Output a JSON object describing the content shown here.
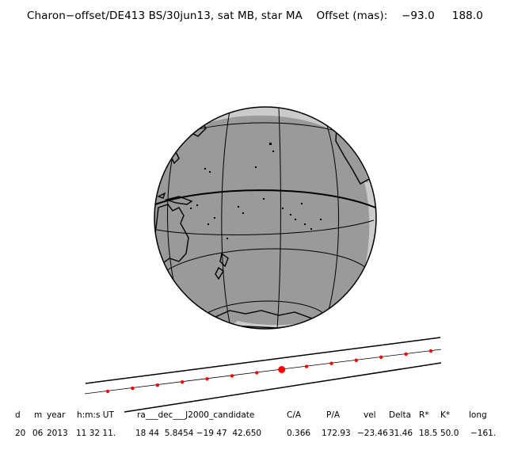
{
  "title": "Charon−offset/DE413 BS/30jun13, sat MB, star MA    Offset (mas):    −93.0     188.0",
  "colors": {
    "globe_fill": "#9a9a9a",
    "limb_band": "#cbcbcb",
    "coast": "#000000",
    "track_dot": "#ff0000"
  },
  "table": {
    "headers": [
      "d",
      "m",
      "year",
      "h:m:s UT",
      "ra___dec___J2000_candidate",
      "C/A",
      "P/A",
      "vel",
      "Delta",
      "R*",
      "K*",
      "long"
    ],
    "values": [
      "20",
      "06",
      "2013",
      "11 32 11.",
      "18 44  5.8454 −19 47  42.650",
      "0.366",
      "172.93",
      "−23.46",
      "31.46",
      "18.5",
      "50.0",
      "−161."
    ]
  }
}
